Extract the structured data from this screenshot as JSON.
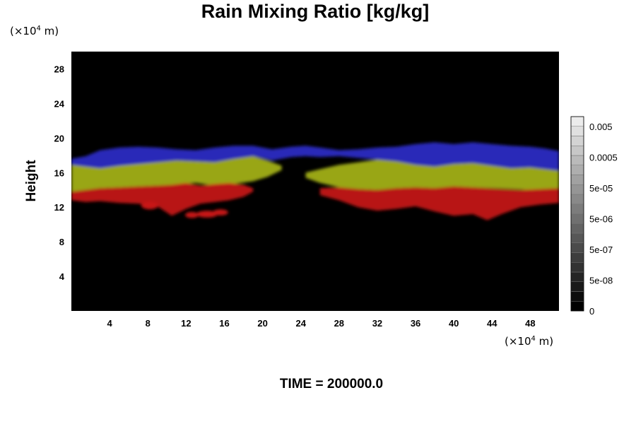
{
  "chart_data": {
    "type": "heatmap",
    "title": "Rain Mixing Ratio [kg/kg]",
    "ylabel": "Height",
    "xlabel": "",
    "x_unit": {
      "prefix": "(×10",
      "exp": "4",
      "suffix": " m)"
    },
    "y_unit": {
      "prefix": "(×10",
      "exp": "4",
      "suffix": " m)"
    },
    "xlim": [
      0,
      51
    ],
    "ylim": [
      0,
      30
    ],
    "x_ticks": [
      4,
      8,
      12,
      16,
      20,
      24,
      28,
      32,
      36,
      40,
      44,
      48
    ],
    "y_ticks": [
      4,
      8,
      12,
      16,
      20,
      24,
      28
    ],
    "background_color": "#000000",
    "time_label": "TIME = 200000.0",
    "colorbar": {
      "labels": [
        "0.005",
        "0.0005",
        "5e-05",
        "5e-06",
        "5e-07",
        "5e-08",
        "0"
      ],
      "levels": 20,
      "low_color": "#000000",
      "high_color": "#ececec"
    },
    "layers": [
      {
        "name": "",
        "color": "#2a2ac8",
        "segments": [
          {
            "x": [
              0,
              1.5,
              3,
              5,
              7,
              9,
              11,
              13,
              15,
              17,
              19,
              21,
              23,
              24.5,
              26,
              28,
              30,
              32,
              34,
              36,
              38,
              40,
              42,
              44,
              46,
              48,
              49.5,
              51
            ],
            "top": [
              17.6,
              17.9,
              18.6,
              18.9,
              19.0,
              18.9,
              18.7,
              18.6,
              18.9,
              19.1,
              19.1,
              18.7,
              19.0,
              19.1,
              18.9,
              18.6,
              18.7,
              18.9,
              19.0,
              19.3,
              19.5,
              19.3,
              19.5,
              19.3,
              19.1,
              19.0,
              18.8,
              18.5
            ],
            "bottom": [
              16.9,
              16.6,
              16.4,
              16.7,
              16.9,
              17.2,
              17.4,
              17.3,
              17.2,
              17.6,
              17.9,
              17.4,
              17.8,
              17.9,
              17.8,
              17.9,
              17.7,
              17.5,
              17.3,
              16.9,
              16.7,
              17.0,
              17.1,
              16.8,
              16.5,
              16.6,
              16.4,
              16.2
            ]
          }
        ]
      },
      {
        "name": "",
        "color": "#a6b41a",
        "segments": [
          {
            "x": [
              0,
              1.5,
              3,
              5,
              7,
              9,
              11,
              13,
              15,
              17,
              19,
              20.5,
              22
            ],
            "top": [
              16.9,
              16.7,
              16.5,
              16.8,
              17.0,
              17.2,
              17.4,
              17.3,
              17.2,
              17.6,
              17.9,
              17.4,
              16.8
            ],
            "bottom": [
              13.8,
              14.0,
              14.2,
              14.3,
              14.4,
              14.5,
              14.6,
              14.8,
              14.5,
              14.7,
              15.0,
              15.5,
              16.3
            ]
          },
          {
            "x": [
              24.5,
              26,
              28,
              30,
              32,
              34,
              36,
              38,
              40,
              42,
              44,
              46,
              48,
              49.5,
              51
            ],
            "top": [
              16.0,
              16.4,
              16.9,
              17.2,
              17.5,
              17.3,
              16.9,
              16.7,
              17.0,
              17.1,
              16.8,
              16.5,
              16.6,
              16.4,
              16.2
            ],
            "bottom": [
              15.4,
              14.8,
              14.3,
              14.1,
              14.0,
              14.2,
              14.3,
              14.2,
              14.4,
              14.3,
              14.2,
              14.1,
              14.0,
              14.1,
              14.2
            ]
          }
        ]
      },
      {
        "name": "",
        "color": "#c81414",
        "segments": [
          {
            "x": [
              0,
              1.5,
              3,
              5,
              7,
              9,
              10.5,
              12,
              13.5,
              15,
              16.5,
              18,
              19
            ],
            "top": [
              13.8,
              14.0,
              14.2,
              14.3,
              14.4,
              14.5,
              14.6,
              14.8,
              14.5,
              14.7,
              14.8,
              14.6,
              14.2
            ],
            "bottom": [
              12.8,
              12.6,
              12.7,
              12.5,
              12.4,
              12.1,
              11.0,
              11.8,
              12.4,
              12.6,
              12.8,
              13.2,
              13.8
            ]
          },
          {
            "x": [
              26,
              28,
              30,
              32,
              34,
              36,
              38,
              40,
              42,
              43.5,
              45,
              47,
              49,
              51
            ],
            "top": [
              14.2,
              14.3,
              14.1,
              14.0,
              14.2,
              14.3,
              14.2,
              14.4,
              14.3,
              14.2,
              14.1,
              14.0,
              14.1,
              14.2
            ],
            "bottom": [
              13.4,
              12.8,
              12.0,
              11.6,
              11.8,
              12.1,
              11.5,
              11.0,
              11.2,
              10.5,
              11.2,
              12.0,
              12.3,
              12.5
            ]
          }
        ]
      },
      {
        "name": "",
        "color": "#c81414",
        "blobs": [
          {
            "x": 8.2,
            "y": 12.2,
            "rx": 0.9,
            "ry": 0.45
          },
          {
            "x": 12.6,
            "y": 11.1,
            "rx": 0.7,
            "ry": 0.35
          },
          {
            "x": 14.2,
            "y": 11.2,
            "rx": 1.1,
            "ry": 0.4
          },
          {
            "x": 15.6,
            "y": 11.4,
            "rx": 0.8,
            "ry": 0.35
          }
        ]
      }
    ]
  }
}
